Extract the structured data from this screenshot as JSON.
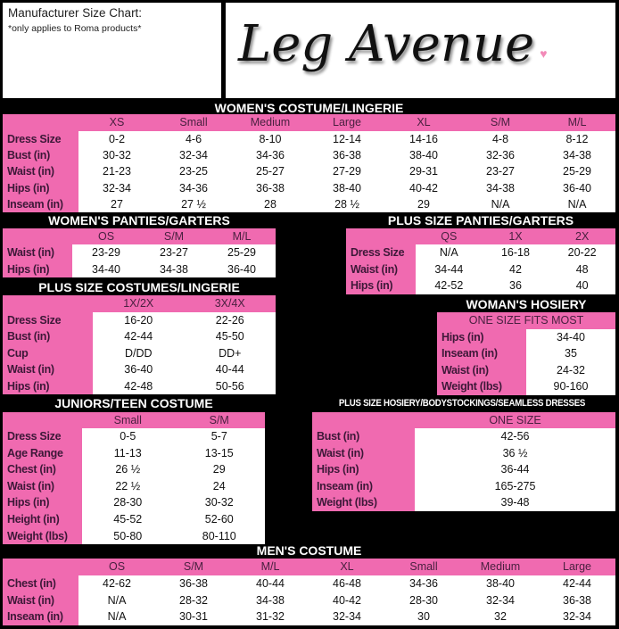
{
  "header": {
    "title": "Manufacturer Size Chart:",
    "note": "*only applies to Roma products*",
    "logo_text": "Leg Avenue",
    "brand_color": "#f06ab0"
  },
  "tables": {
    "womens_costume": {
      "title": "WOMEN'S COSTUME/LINGERIE",
      "columns": [
        "XS",
        "Small",
        "Medium",
        "Large",
        "XL",
        "S/M",
        "M/L"
      ],
      "rows": [
        {
          "label": "Dress Size",
          "values": [
            "0-2",
            "4-6",
            "8-10",
            "12-14",
            "14-16",
            "4-8",
            "8-12"
          ]
        },
        {
          "label": "Bust (in)",
          "values": [
            "30-32",
            "32-34",
            "34-36",
            "36-38",
            "38-40",
            "32-36",
            "34-38"
          ]
        },
        {
          "label": "Waist (in)",
          "values": [
            "21-23",
            "23-25",
            "25-27",
            "27-29",
            "29-31",
            "23-27",
            "25-29"
          ]
        },
        {
          "label": "Hips (in)",
          "values": [
            "32-34",
            "34-36",
            "36-38",
            "38-40",
            "40-42",
            "34-38",
            "36-40"
          ]
        },
        {
          "label": "Inseam (in)",
          "values": [
            "27",
            "27 ½",
            "28",
            "28 ½",
            "29",
            "N/A",
            "N/A"
          ]
        }
      ]
    },
    "womens_panties": {
      "title": "WOMEN'S PANTIES/GARTERS",
      "columns": [
        "OS",
        "S/M",
        "M/L"
      ],
      "rows": [
        {
          "label": "Waist (in)",
          "values": [
            "23-29",
            "23-27",
            "25-29"
          ]
        },
        {
          "label": "Hips (in)",
          "values": [
            "34-40",
            "34-38",
            "36-40"
          ]
        }
      ]
    },
    "plus_panties": {
      "title": "PLUS SIZE PANTIES/GARTERS",
      "columns": [
        "QS",
        "1X",
        "2X"
      ],
      "rows": [
        {
          "label": "Dress Size",
          "values": [
            "N/A",
            "16-18",
            "20-22"
          ]
        },
        {
          "label": "Waist (in)",
          "values": [
            "34-44",
            "42",
            "48"
          ]
        },
        {
          "label": "Hips (in)",
          "values": [
            "42-52",
            "36",
            "40"
          ]
        }
      ]
    },
    "plus_costumes": {
      "title": "PLUS SIZE COSTUMES/LINGERIE",
      "columns": [
        "1X/2X",
        "3X/4X"
      ],
      "rows": [
        {
          "label": "Dress Size",
          "values": [
            "16-20",
            "22-26"
          ]
        },
        {
          "label": "Bust (in)",
          "values": [
            "42-44",
            "45-50"
          ]
        },
        {
          "label": "Cup",
          "values": [
            "D/DD",
            "DD+"
          ]
        },
        {
          "label": "Waist (in)",
          "values": [
            "36-40",
            "40-44"
          ]
        },
        {
          "label": "Hips (in)",
          "values": [
            "42-48",
            "50-56"
          ]
        }
      ]
    },
    "womans_hosiery": {
      "title": "WOMAN'S HOSIERY",
      "columns": [
        "ONE SIZE FITS MOST"
      ],
      "rows": [
        {
          "label": "Hips (in)",
          "values": [
            "34-40"
          ]
        },
        {
          "label": "Inseam (in)",
          "values": [
            "35"
          ]
        },
        {
          "label": "Waist (in)",
          "values": [
            "24-32"
          ]
        },
        {
          "label": "Weight (lbs)",
          "values": [
            "90-160"
          ]
        }
      ]
    },
    "juniors": {
      "title": "JUNIORS/TEEN COSTUME",
      "columns": [
        "Small",
        "S/M"
      ],
      "rows": [
        {
          "label": "Dress Size",
          "values": [
            "0-5",
            "5-7"
          ]
        },
        {
          "label": "Age Range",
          "values": [
            "11-13",
            "13-15"
          ]
        },
        {
          "label": "Chest (in)",
          "values": [
            "26 ½",
            "29"
          ]
        },
        {
          "label": "Waist (in)",
          "values": [
            "22 ½",
            "24"
          ]
        },
        {
          "label": "Hips (in)",
          "values": [
            "28-30",
            "30-32"
          ]
        },
        {
          "label": "Height (in)",
          "values": [
            "45-52",
            "52-60"
          ]
        },
        {
          "label": "Weight (lbs)",
          "values": [
            "50-80",
            "80-110"
          ]
        }
      ]
    },
    "plus_hosiery": {
      "title": "PLUS SIZE HOSIERY/BODYSTOCKINGS/SEAMLESS  DRESSES",
      "columns": [
        "ONE SIZE"
      ],
      "rows": [
        {
          "label": "Bust (in)",
          "values": [
            "42-56"
          ]
        },
        {
          "label": "Waist (in)",
          "values": [
            "36 ½"
          ]
        },
        {
          "label": "Hips (in)",
          "values": [
            "36-44"
          ]
        },
        {
          "label": "Inseam (in)",
          "values": [
            "165-275"
          ]
        },
        {
          "label": "Weight (lbs)",
          "values": [
            "39-48"
          ]
        }
      ]
    },
    "mens": {
      "title": "MEN'S COSTUME",
      "columns": [
        "OS",
        "S/M",
        "M/L",
        "XL",
        "Small",
        "Medium",
        "Large"
      ],
      "rows": [
        {
          "label": "Chest (in)",
          "values": [
            "42-62",
            "36-38",
            "40-44",
            "46-48",
            "34-36",
            "38-40",
            "42-44"
          ]
        },
        {
          "label": "Waist (in)",
          "values": [
            "N/A",
            "28-32",
            "34-38",
            "40-42",
            "28-30",
            "32-34",
            "36-38"
          ]
        },
        {
          "label": "Inseam (in)",
          "values": [
            "N/A",
            "30-31",
            "31-32",
            "32-34",
            "30",
            "32",
            "32-34"
          ]
        }
      ]
    }
  }
}
